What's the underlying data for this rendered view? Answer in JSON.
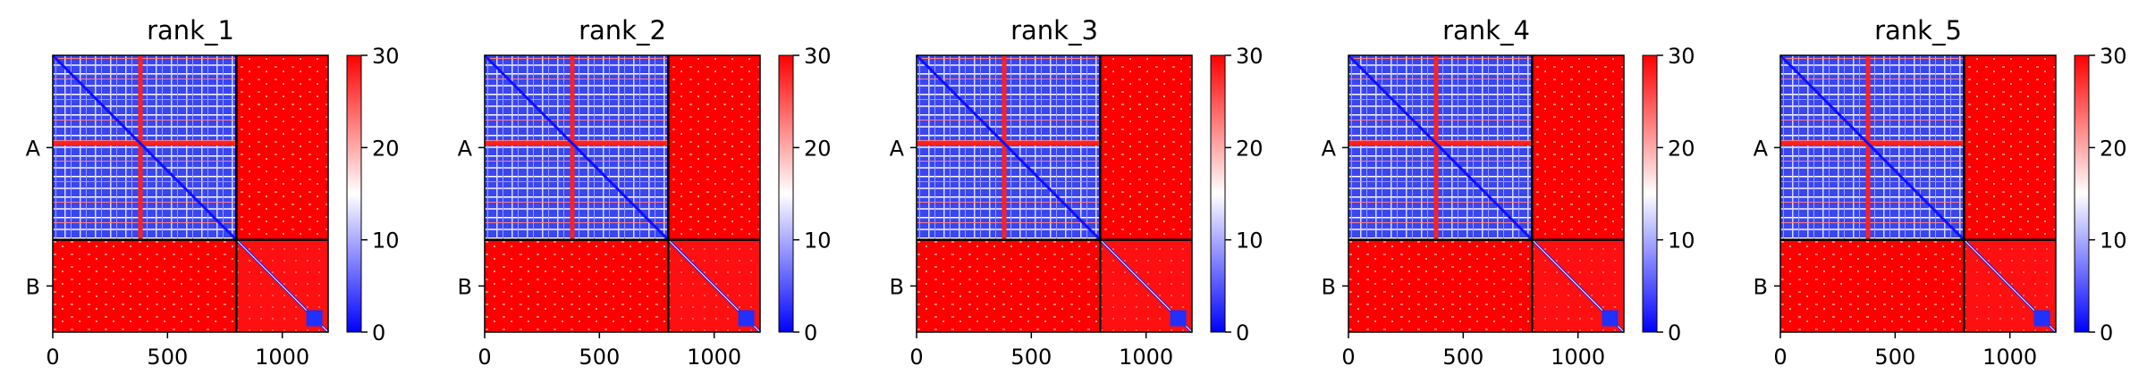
{
  "chart_data": [
    {
      "type": "heatmap",
      "title": "rank_1",
      "x_ticks": [
        0,
        500,
        1000
      ],
      "y_labels": [
        "A",
        "B"
      ],
      "chain_boundary": 800,
      "size": 1200,
      "colorbar": {
        "min": 0,
        "max": 30,
        "ticks": [
          0,
          10,
          20,
          30
        ],
        "colors": [
          "#0000ff",
          "#ffffff",
          "#ff0000"
        ]
      }
    },
    {
      "type": "heatmap",
      "title": "rank_2",
      "x_ticks": [
        0,
        500,
        1000
      ],
      "y_labels": [
        "A",
        "B"
      ],
      "chain_boundary": 800,
      "size": 1200,
      "colorbar": {
        "min": 0,
        "max": 30,
        "ticks": [
          0,
          10,
          20,
          30
        ],
        "colors": [
          "#0000ff",
          "#ffffff",
          "#ff0000"
        ]
      }
    },
    {
      "type": "heatmap",
      "title": "rank_3",
      "x_ticks": [
        0,
        500,
        1000
      ],
      "y_labels": [
        "A",
        "B"
      ],
      "chain_boundary": 800,
      "size": 1200,
      "colorbar": {
        "min": 0,
        "max": 30,
        "ticks": [
          0,
          10,
          20,
          30
        ],
        "colors": [
          "#0000ff",
          "#ffffff",
          "#ff0000"
        ]
      }
    },
    {
      "type": "heatmap",
      "title": "rank_4",
      "x_ticks": [
        0,
        500,
        1000
      ],
      "y_labels": [
        "A",
        "B"
      ],
      "chain_boundary": 800,
      "size": 1200,
      "colorbar": {
        "min": 0,
        "max": 30,
        "ticks": [
          0,
          10,
          20,
          30
        ],
        "colors": [
          "#0000ff",
          "#ffffff",
          "#ff0000"
        ]
      }
    },
    {
      "type": "heatmap",
      "title": "rank_5",
      "x_ticks": [
        0,
        500,
        1000
      ],
      "y_labels": [
        "A",
        "B"
      ],
      "chain_boundary": 800,
      "size": 1200,
      "colorbar": {
        "min": 0,
        "max": 30,
        "ticks": [
          0,
          10,
          20,
          30
        ],
        "colors": [
          "#0000ff",
          "#ffffff",
          "#ff0000"
        ]
      }
    }
  ]
}
